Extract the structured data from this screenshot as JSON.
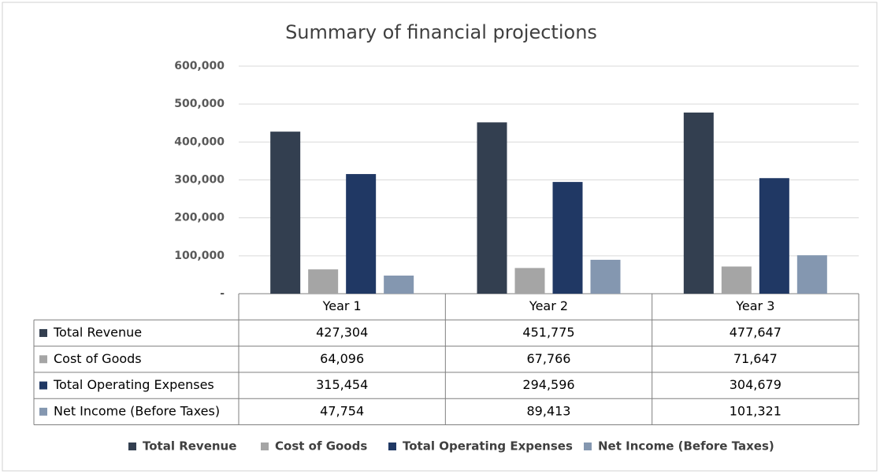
{
  "chart_data": {
    "type": "bar",
    "title": "Summary of financial projections",
    "categories": [
      "Year 1",
      "Year 2",
      "Year 3"
    ],
    "series": [
      {
        "name": "Total Revenue",
        "color": "#333f50",
        "values": [
          427304,
          451775,
          477647
        ],
        "value_labels": [
          "427,304",
          "451,775",
          "477,647"
        ]
      },
      {
        "name": "Cost of Goods",
        "color": "#a5a5a5",
        "values": [
          64096,
          67766,
          71647
        ],
        "value_labels": [
          "64,096",
          "67,766",
          "71,647"
        ]
      },
      {
        "name": "Total Operating Expenses",
        "color": "#203864",
        "values": [
          315454,
          294596,
          304679
        ],
        "value_labels": [
          "315,454",
          "294,596",
          "304,679"
        ]
      },
      {
        "name": "Net Income (Before Taxes)",
        "color": "#8497b0",
        "values": [
          47754,
          89413,
          101321
        ],
        "value_labels": [
          "47,754",
          "89,413",
          "101,321"
        ]
      }
    ],
    "ylim": [
      0,
      600000
    ],
    "yticks": [
      {
        "value": 0,
        "label": "-"
      },
      {
        "value": 100000,
        "label": "100,000"
      },
      {
        "value": 200000,
        "label": "200,000"
      },
      {
        "value": 300000,
        "label": "300,000"
      },
      {
        "value": 400000,
        "label": "400,000"
      },
      {
        "value": 500000,
        "label": "500,000"
      },
      {
        "value": 600000,
        "label": "600,000"
      }
    ],
    "grid": true,
    "legend": "bottom"
  }
}
